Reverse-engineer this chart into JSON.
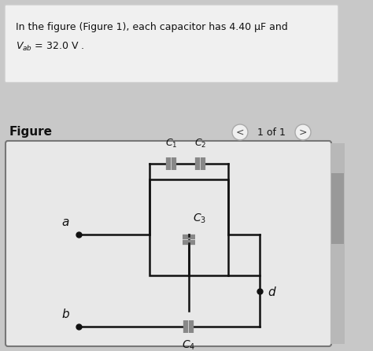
{
  "bg_outer": "#c8c8c8",
  "bg_text_area": "#f0f0f0",
  "bg_text_border": "#cccccc",
  "bg_circuit_area": "#e8e8e8",
  "bg_circuit_border": "#888888",
  "scrollbar_bg": "#b8b8b8",
  "scrollbar_handle": "#999999",
  "line_color": "#111111",
  "cap_color": "#888888",
  "dot_color": "#111111",
  "text_color": "#111111",
  "line1": "In the figure (Figure 1), each capacitor has 4.40 μF and",
  "line2_math": "$V_{ab}$ = 32.0 V .",
  "fig_label": "Figure",
  "nav_text": "1 of 1",
  "label_a": "a",
  "label_b": "b",
  "label_d": "d",
  "label_C1": "$C_1$",
  "label_C2": "$C_2$",
  "label_C3": "$C_3$",
  "label_C4": "$C_4$"
}
